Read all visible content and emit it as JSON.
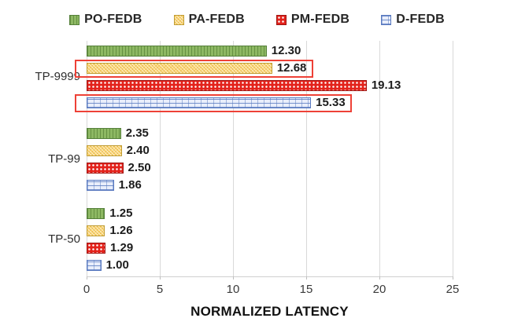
{
  "figure": {
    "background": "#ffffff"
  },
  "chart_data": {
    "type": "bar",
    "orientation": "horizontal",
    "title": "",
    "xlabel": "NORMALIZED LATENCY",
    "xlim": [
      0,
      25
    ],
    "xticks": [
      "0",
      "5",
      "10",
      "15",
      "20",
      "25"
    ],
    "grid": true,
    "legend_position": "top",
    "categories": [
      "TP-9999",
      "TP-99",
      "TP-50"
    ],
    "series": [
      {
        "name": "PO-FEDB",
        "values": [
          12.3,
          2.35,
          1.25
        ],
        "labels": [
          "12.30",
          "2.35",
          "1.25"
        ],
        "fill": "#8db863",
        "border": "#55803a",
        "pattern": "vertical-stripes"
      },
      {
        "name": "PA-FEDB",
        "values": [
          12.68,
          2.4,
          1.26
        ],
        "labels": [
          "12.68",
          "2.40",
          "1.26"
        ],
        "fill": "#fbd36d",
        "border": "#c09c33",
        "pattern": "diagonal-checker"
      },
      {
        "name": "PM-FEDB",
        "values": [
          19.13,
          2.5,
          1.29
        ],
        "labels": [
          "19.13",
          "2.50",
          "1.29"
        ],
        "fill": "#e3231c",
        "border": "#9e1512",
        "pattern": "white-dots"
      },
      {
        "name": "D-FEDB",
        "values": [
          15.33,
          1.86,
          1.0
        ],
        "labels": [
          "15.33",
          "1.86",
          "1.00"
        ],
        "fill": "#e9eefb",
        "border": "#5a7ac0",
        "pattern": "brick"
      }
    ],
    "highlights": [
      {
        "category": "TP-9999",
        "series": "PA-FEDB"
      },
      {
        "category": "TP-9999",
        "series": "D-FEDB"
      }
    ],
    "highlight_color": "#ee4137"
  }
}
